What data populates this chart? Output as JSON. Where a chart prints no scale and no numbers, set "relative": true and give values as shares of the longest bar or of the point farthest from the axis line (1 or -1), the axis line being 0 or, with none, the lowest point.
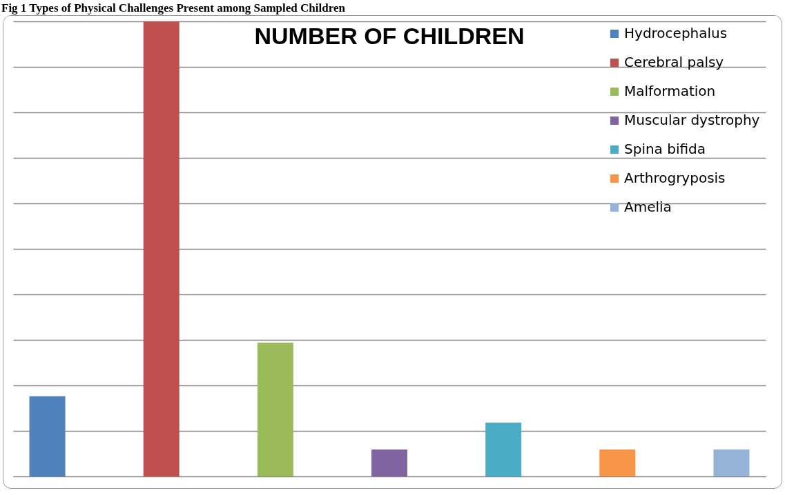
{
  "chart_data": {
    "type": "bar",
    "title": "NUMBER OF CHILDREN",
    "annotations": [
      "Fig 1 Types of Physical Challenges Present among Sampled Children"
    ],
    "categories": [
      null,
      null,
      null,
      null,
      null,
      null,
      null
    ],
    "series": [
      {
        "name": "Hydrocephalus",
        "color": "#4f81bd",
        "values": [
          0.176,
          null,
          null,
          null,
          null,
          null,
          null
        ]
      },
      {
        "name": "Cerebral palsy",
        "color": "#c0504d",
        "values": [
          null,
          1,
          null,
          null,
          null,
          null,
          null
        ]
      },
      {
        "name": "Malformation",
        "color": "#9bbb59",
        "values": [
          null,
          null,
          0.294,
          null,
          null,
          null,
          null
        ]
      },
      {
        "name": "Muscular dystrophy",
        "color": "#8064a2",
        "values": [
          null,
          null,
          null,
          0.059,
          null,
          null,
          null
        ]
      },
      {
        "name": "Spina bifida",
        "color": "#4bacc6",
        "values": [
          null,
          null,
          null,
          null,
          0.118,
          null,
          null
        ]
      },
      {
        "name": "Arthrogryposis",
        "color": "#f79646",
        "values": [
          null,
          null,
          null,
          null,
          null,
          0.059,
          null
        ]
      },
      {
        "name": "Amelia",
        "color": "#95b3d7",
        "values": [
          null,
          null,
          null,
          null,
          null,
          null,
          0.059
        ]
      }
    ],
    "stacked": true,
    "relative": true,
    "grid": "y",
    "legend": "right"
  }
}
